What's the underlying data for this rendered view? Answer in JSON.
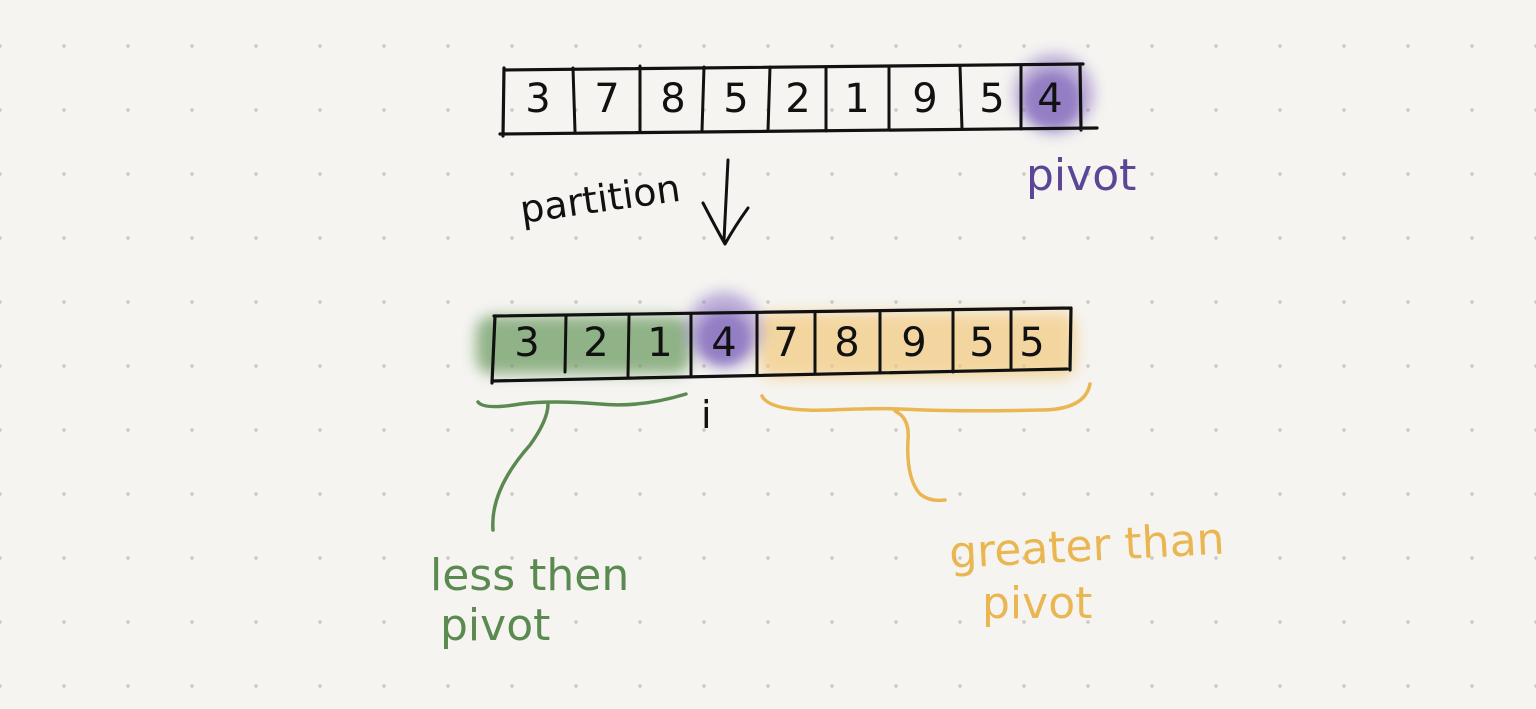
{
  "colors": {
    "ink": "#111111",
    "pivot": "#7a65b0",
    "less": "#5b8a50",
    "greater": "#eab651"
  },
  "top_array": {
    "values": [
      "3",
      "7",
      "8",
      "5",
      "2",
      "1",
      "9",
      "5",
      "4"
    ],
    "pivot_index": 8
  },
  "bottom_array": {
    "values": [
      "3",
      "2",
      "1",
      "4",
      "7",
      "8",
      "9",
      "5",
      "5"
    ],
    "groups": [
      "less",
      "less",
      "less",
      "pivot",
      "greater",
      "greater",
      "greater",
      "greater",
      "greater"
    ]
  },
  "labels": {
    "pivot": "pivot",
    "partition": "partition",
    "index_marker": "i",
    "less_line1": "less then",
    "less_line2": "pivot",
    "greater_line1": "greater than",
    "greater_line2": "pivot"
  }
}
